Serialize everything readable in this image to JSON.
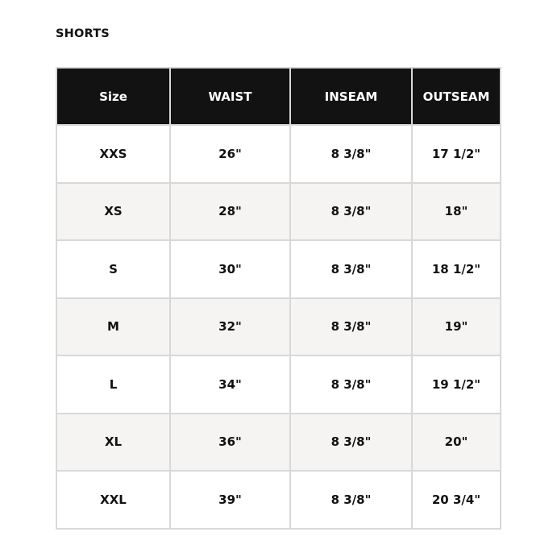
{
  "title": "SHORTS",
  "headers": [
    "Size",
    "WAIST",
    "INSEAM",
    "OUTSEAM"
  ],
  "rows": [
    [
      "XXS",
      "26\"",
      "8 3/8\"",
      "17 1/2\""
    ],
    [
      "XS",
      "28\"",
      "8 3/8\"",
      "18\""
    ],
    [
      "S",
      "30\"",
      "8 3/8\"",
      "18 1/2\""
    ],
    [
      "M",
      "32\"",
      "8 3/8\"",
      "19\""
    ],
    [
      "L",
      "34\"",
      "8 3/8\"",
      "19 1/2\""
    ],
    [
      "XL",
      "36\"",
      "8 3/8\"",
      "20\""
    ],
    [
      "XXL",
      "39\"",
      "8 3/8\"",
      "20 3/4\""
    ]
  ],
  "colors": {
    "header_bg": "#121212",
    "alt_row_bg": "#f5f4f3",
    "border": "#d8d8d8"
  }
}
